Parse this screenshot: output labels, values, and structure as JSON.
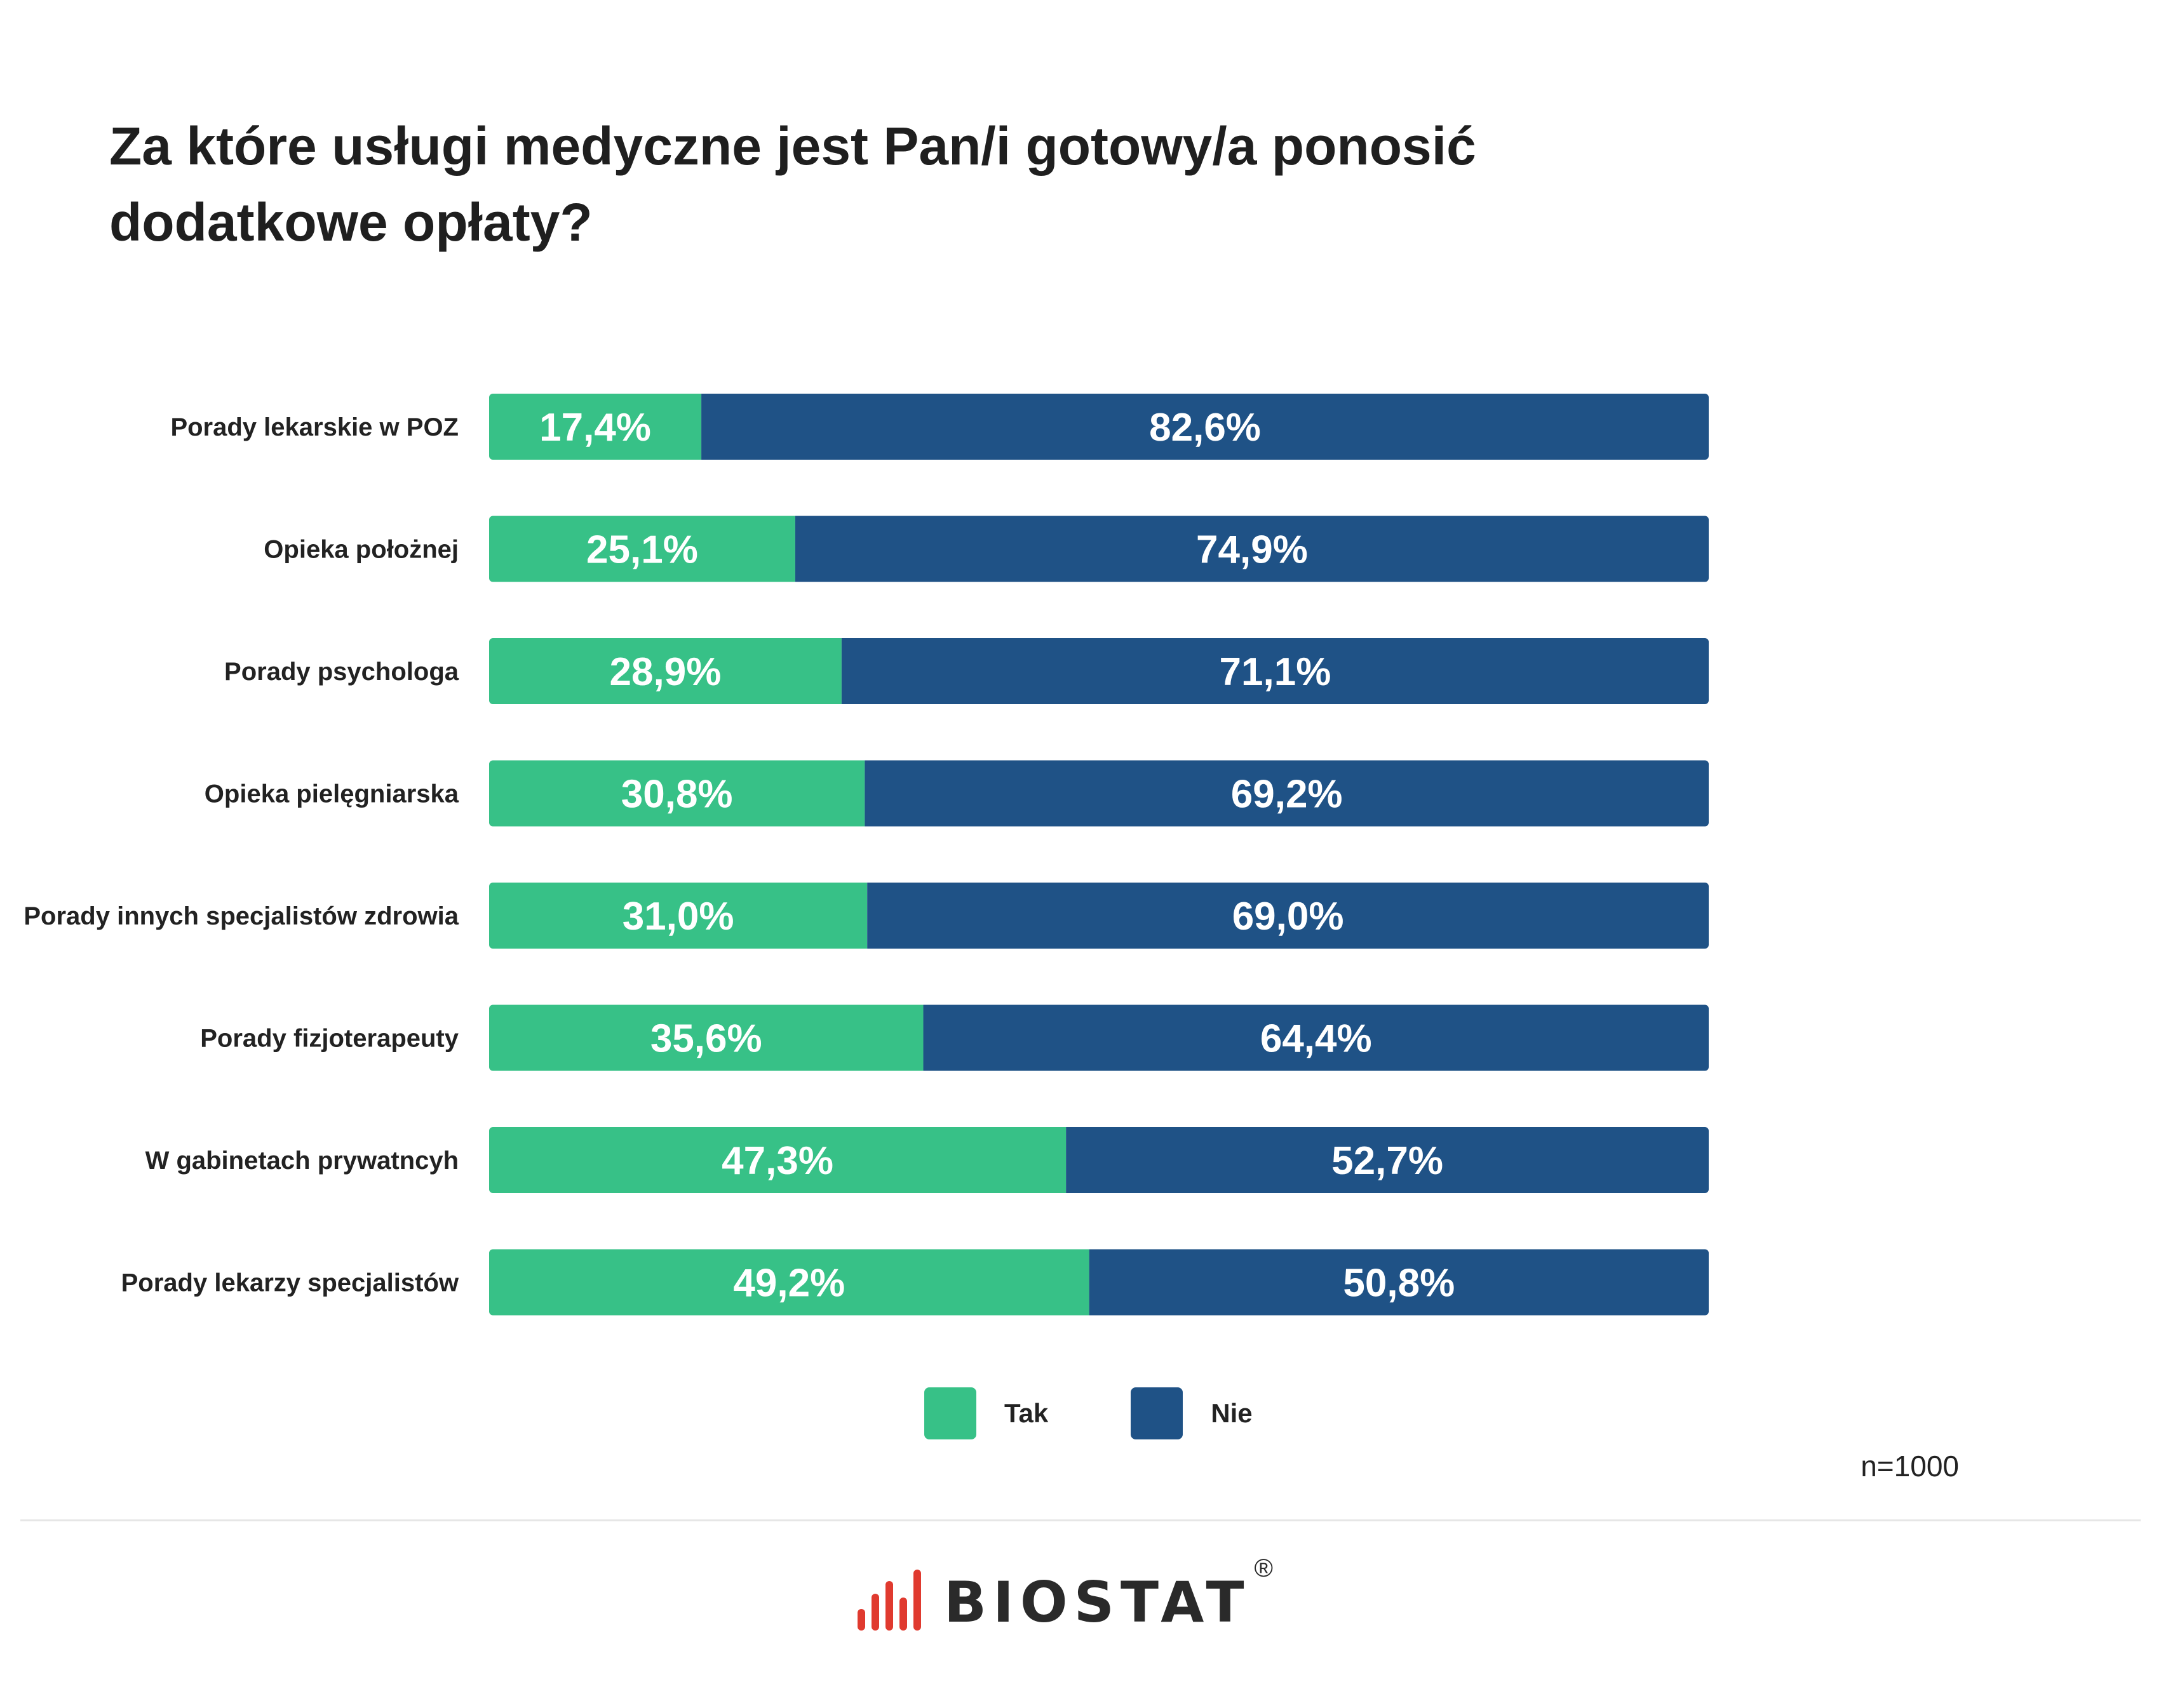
{
  "chart_data": {
    "type": "bar",
    "orientation": "horizontal",
    "stacked": true,
    "title": "Za które usługi medyczne jest Pan/i gotowy/a ponosić dodatkowe opłaty?",
    "categories": [
      "Porady lekarskie w POZ",
      "Opieka położnej",
      "Porady psychologa",
      "Opieka pielęgniarska",
      "Porady innych specjalistów zdrowia",
      "Porady fizjoterapeuty",
      "W gabinetach prywatncyh",
      "Porady lekarzy specjalistów"
    ],
    "series": [
      {
        "name": "Tak",
        "color": "#37c187",
        "values": [
          17.4,
          25.1,
          28.9,
          30.8,
          31.0,
          35.6,
          47.3,
          49.2
        ],
        "labels": [
          "17,4%",
          "25,1%",
          "28,9%",
          "30,8%",
          "31,0%",
          "35,6%",
          "47,3%",
          "49,2%"
        ]
      },
      {
        "name": "Nie",
        "color": "#1f5286",
        "values": [
          82.6,
          74.9,
          71.1,
          69.2,
          69.0,
          64.4,
          52.7,
          50.8
        ],
        "labels": [
          "82,6%",
          "74,9%",
          "71,1%",
          "69,2%",
          "69,0%",
          "64,4%",
          "52,7%",
          "50,8%"
        ]
      }
    ],
    "xlim": [
      0,
      100
    ],
    "grid": false,
    "legend_position": "bottom-center"
  },
  "note": "n=1000",
  "brand": {
    "name": "BIOSTAT",
    "reg": "®",
    "icon": "bar-chart-icon",
    "accent_color": "#e03a2f"
  }
}
